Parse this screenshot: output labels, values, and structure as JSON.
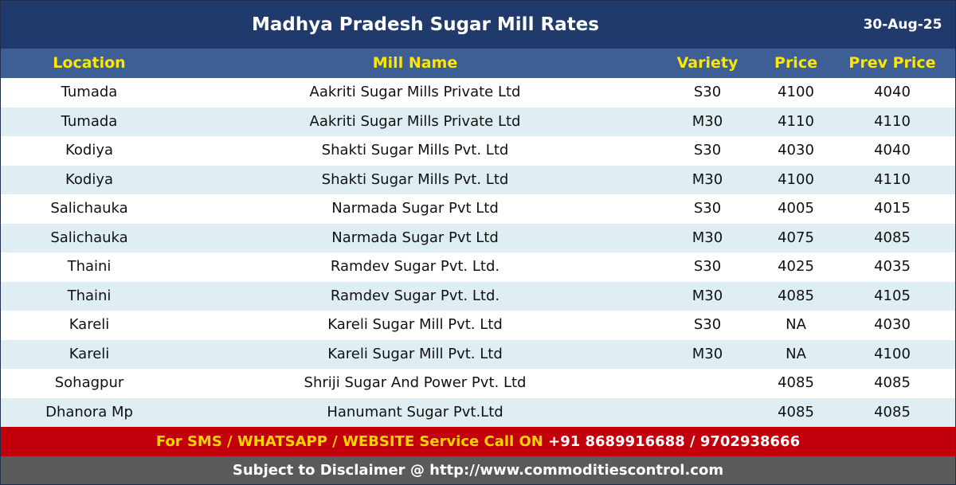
{
  "title": "Madhya Pradesh Sugar Mill Rates",
  "date": "30-Aug-25",
  "columns": {
    "location": "Location",
    "mill": "Mill Name",
    "variety": "Variety",
    "price": "Price",
    "prev": "Prev Price"
  },
  "rows": [
    {
      "location": "Tumada",
      "mill": "Aakriti Sugar Mills Private Ltd",
      "variety": "S30",
      "price": "4100",
      "prev": "4040"
    },
    {
      "location": "Tumada",
      "mill": "Aakriti Sugar Mills Private Ltd",
      "variety": "M30",
      "price": "4110",
      "prev": "4110"
    },
    {
      "location": "Kodiya",
      "mill": "Shakti Sugar Mills Pvt. Ltd",
      "variety": "S30",
      "price": "4030",
      "prev": "4040"
    },
    {
      "location": "Kodiya",
      "mill": "Shakti Sugar Mills Pvt. Ltd",
      "variety": "M30",
      "price": "4100",
      "prev": "4110"
    },
    {
      "location": "Salichauka",
      "mill": "Narmada Sugar Pvt Ltd",
      "variety": "S30",
      "price": "4005",
      "prev": "4015"
    },
    {
      "location": "Salichauka",
      "mill": "Narmada Sugar Pvt Ltd",
      "variety": "M30",
      "price": "4075",
      "prev": "4085"
    },
    {
      "location": "Thaini",
      "mill": "Ramdev Sugar Pvt. Ltd.",
      "variety": "S30",
      "price": "4025",
      "prev": "4035"
    },
    {
      "location": "Thaini",
      "mill": "Ramdev Sugar Pvt. Ltd.",
      "variety": "M30",
      "price": "4085",
      "prev": "4105"
    },
    {
      "location": "Kareli",
      "mill": "Kareli Sugar Mill Pvt. Ltd",
      "variety": "S30",
      "price": "NA",
      "prev": "4030"
    },
    {
      "location": "Kareli",
      "mill": "Kareli Sugar Mill Pvt. Ltd",
      "variety": "M30",
      "price": "NA",
      "prev": "4100"
    },
    {
      "location": "Sohagpur",
      "mill": "Shriji Sugar And Power Pvt. Ltd",
      "variety": "",
      "price": "4085",
      "prev": "4085"
    },
    {
      "location": "Dhanora Mp",
      "mill": "Hanumant Sugar Pvt.Ltd",
      "variety": "",
      "price": "4085",
      "prev": "4085"
    }
  ],
  "promo": {
    "text": "For SMS / WHATSAPP / WEBSITE Service Call  ON",
    "phones": "+91 8689916688 / 9702938666"
  },
  "footer": "Subject to Disclaimer @  http://www.commoditiescontrol.com",
  "colors": {
    "title_bg": "#1f3a6b",
    "header_bg": "#3e5f96",
    "header_text": "#ffe600",
    "row_alt": "#deeef2",
    "promo_bg": "#c2000b",
    "promo_text": "#ffd400",
    "footer_bg": "#5a5a5a"
  }
}
